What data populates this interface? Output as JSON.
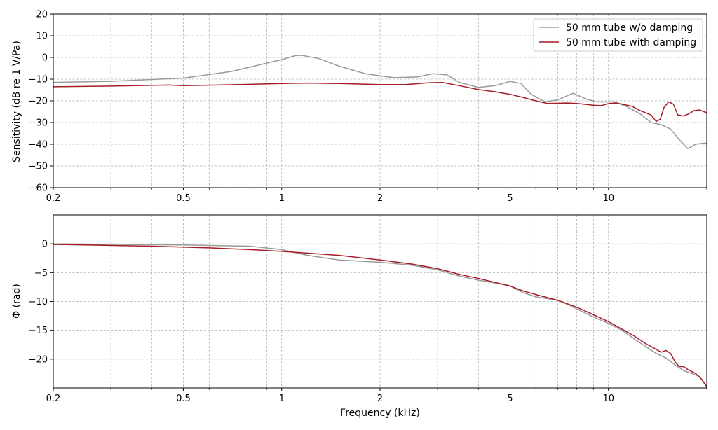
{
  "colors": {
    "no_damping": "#9a9a9a",
    "with_damping": "#a51c24",
    "grid": "#b0b0b0"
  },
  "chart_data": [
    {
      "type": "line",
      "xscale": "log",
      "xlim": [
        0.2,
        20
      ],
      "ylim": [
        -60,
        20
      ],
      "grid": true,
      "ylabel": "Sensitivity (dB re 1 V/Pa)",
      "xlabel": "",
      "xticks": [
        0.2,
        0.5,
        1,
        2,
        5,
        10
      ],
      "xtick_labels": [
        "0.2",
        "0.5",
        "1",
        "2",
        "5",
        "10"
      ],
      "yticks": [
        -60,
        -50,
        -40,
        -30,
        -20,
        -10,
        0,
        10,
        20
      ],
      "ytick_labels": [
        "−60",
        "−50",
        "−40",
        "−30",
        "−20",
        "−10",
        "0",
        "10",
        "20"
      ],
      "legend_position": "top-right",
      "series": [
        {
          "name": "50 mm tube w/o damping",
          "color": "#9a9a9a",
          "points": [
            [
              0.2,
              -11.5
            ],
            [
              0.3,
              -11
            ],
            [
              0.5,
              -9.5
            ],
            [
              0.7,
              -6.5
            ],
            [
              0.85,
              -3.5
            ],
            [
              1.0,
              -1
            ],
            [
              1.1,
              0.8
            ],
            [
              1.15,
              1
            ],
            [
              1.3,
              -0.5
            ],
            [
              1.5,
              -4
            ],
            [
              1.8,
              -7.5
            ],
            [
              2.2,
              -9.3
            ],
            [
              2.6,
              -9
            ],
            [
              2.9,
              -7.5
            ],
            [
              3.2,
              -8
            ],
            [
              3.5,
              -11.5
            ],
            [
              4.0,
              -13.8
            ],
            [
              4.5,
              -13
            ],
            [
              5.0,
              -11
            ],
            [
              5.4,
              -12
            ],
            [
              5.8,
              -17
            ],
            [
              6.4,
              -20.5
            ],
            [
              7.0,
              -19.5
            ],
            [
              7.8,
              -16.5
            ],
            [
              8.5,
              -19
            ],
            [
              9.2,
              -20.5
            ],
            [
              10.0,
              -20.5
            ],
            [
              10.5,
              -20.5
            ],
            [
              11.5,
              -23
            ],
            [
              12.5,
              -26
            ],
            [
              13.5,
              -30
            ],
            [
              14.5,
              -31
            ],
            [
              15.5,
              -33
            ],
            [
              16.5,
              -38
            ],
            [
              17.5,
              -42
            ],
            [
              18.5,
              -40
            ],
            [
              19.5,
              -39.5
            ],
            [
              20,
              -39.5
            ]
          ]
        },
        {
          "name": "50 mm tube with damping",
          "color": "#a51c24",
          "points": [
            [
              0.2,
              -13.5
            ],
            [
              0.3,
              -13.2
            ],
            [
              0.45,
              -12.7
            ],
            [
              0.5,
              -13
            ],
            [
              0.7,
              -12.6
            ],
            [
              1.0,
              -12
            ],
            [
              1.2,
              -11.8
            ],
            [
              1.5,
              -12
            ],
            [
              2.0,
              -12.5
            ],
            [
              2.4,
              -12.5
            ],
            [
              2.8,
              -11.7
            ],
            [
              3.1,
              -11.5
            ],
            [
              3.5,
              -13
            ],
            [
              4.0,
              -14.8
            ],
            [
              4.5,
              -15.8
            ],
            [
              5.0,
              -17
            ],
            [
              5.5,
              -18.5
            ],
            [
              6.0,
              -20
            ],
            [
              6.5,
              -21.2
            ],
            [
              7.5,
              -21
            ],
            [
              8.0,
              -21.2
            ],
            [
              9.0,
              -22
            ],
            [
              9.5,
              -22.2
            ],
            [
              10.0,
              -21.3
            ],
            [
              10.5,
              -21
            ],
            [
              11.0,
              -21.5
            ],
            [
              11.8,
              -22.5
            ],
            [
              12.5,
              -24.5
            ],
            [
              13.5,
              -26.5
            ],
            [
              14.0,
              -29.5
            ],
            [
              14.4,
              -28.5
            ],
            [
              14.8,
              -23
            ],
            [
              15.3,
              -20.5
            ],
            [
              15.8,
              -21.5
            ],
            [
              16.3,
              -26.5
            ],
            [
              17.0,
              -27
            ],
            [
              17.6,
              -26
            ],
            [
              18.3,
              -24.5
            ],
            [
              19.0,
              -24.2
            ],
            [
              19.6,
              -25
            ],
            [
              20,
              -25.5
            ]
          ]
        }
      ]
    },
    {
      "type": "line",
      "xscale": "log",
      "xlim": [
        0.2,
        20
      ],
      "ylim": [
        -25,
        5
      ],
      "grid": true,
      "ylabel": "Φ (rad)",
      "xlabel": "Frequency (kHz)",
      "xticks": [
        0.2,
        0.5,
        1,
        2,
        5,
        10
      ],
      "xtick_labels": [
        "0.2",
        "0.5",
        "1",
        "2",
        "5",
        "10"
      ],
      "yticks": [
        -20,
        -15,
        -10,
        -5,
        0
      ],
      "ytick_labels": [
        "−20",
        "−15",
        "−10",
        "−5",
        "0"
      ],
      "series": [
        {
          "name": "50 mm tube w/o damping",
          "color": "#9a9a9a",
          "points": [
            [
              0.2,
              0
            ],
            [
              0.5,
              -0.2
            ],
            [
              0.8,
              -0.4
            ],
            [
              1.0,
              -1
            ],
            [
              1.2,
              -2
            ],
            [
              1.5,
              -2.8
            ],
            [
              2.0,
              -3.2
            ],
            [
              2.5,
              -3.7
            ],
            [
              3.0,
              -4.5
            ],
            [
              3.5,
              -5.6
            ],
            [
              4.0,
              -6.3
            ],
            [
              4.5,
              -6.8
            ],
            [
              5.0,
              -7.3
            ],
            [
              5.5,
              -8.5
            ],
            [
              6.0,
              -9.2
            ],
            [
              6.5,
              -9.5
            ],
            [
              7.0,
              -9.8
            ],
            [
              7.5,
              -10.5
            ],
            [
              8.0,
              -11.3
            ],
            [
              9.0,
              -12.7
            ],
            [
              10.0,
              -13.8
            ],
            [
              11.0,
              -15
            ],
            [
              12.0,
              -16.5
            ],
            [
              13.0,
              -17.8
            ],
            [
              14.0,
              -19
            ],
            [
              15.0,
              -19.8
            ],
            [
              16.0,
              -21
            ],
            [
              17.0,
              -22
            ],
            [
              18.0,
              -22.5
            ],
            [
              19.0,
              -23
            ],
            [
              20,
              -24.8
            ]
          ]
        },
        {
          "name": "50 mm tube with damping",
          "color": "#a51c24",
          "points": [
            [
              0.2,
              -0.1
            ],
            [
              0.4,
              -0.4
            ],
            [
              0.6,
              -0.7
            ],
            [
              0.8,
              -1
            ],
            [
              1.0,
              -1.3
            ],
            [
              1.5,
              -2
            ],
            [
              2.0,
              -2.8
            ],
            [
              2.5,
              -3.5
            ],
            [
              3.0,
              -4.3
            ],
            [
              3.5,
              -5.3
            ],
            [
              4.0,
              -6
            ],
            [
              4.5,
              -6.7
            ],
            [
              5.0,
              -7.3
            ],
            [
              5.5,
              -8.2
            ],
            [
              6.0,
              -8.8
            ],
            [
              7.0,
              -9.8
            ],
            [
              8.0,
              -11
            ],
            [
              9.0,
              -12.3
            ],
            [
              10.0,
              -13.5
            ],
            [
              11.0,
              -14.8
            ],
            [
              12.0,
              -16
            ],
            [
              13.0,
              -17.3
            ],
            [
              14.0,
              -18.3
            ],
            [
              14.5,
              -18.8
            ],
            [
              15.0,
              -18.5
            ],
            [
              15.5,
              -19
            ],
            [
              16.0,
              -20.5
            ],
            [
              16.5,
              -21.3
            ],
            [
              17.0,
              -21.3
            ],
            [
              17.5,
              -21.8
            ],
            [
              18.5,
              -22.5
            ],
            [
              19.3,
              -23.5
            ],
            [
              20,
              -24.8
            ]
          ]
        }
      ]
    }
  ]
}
